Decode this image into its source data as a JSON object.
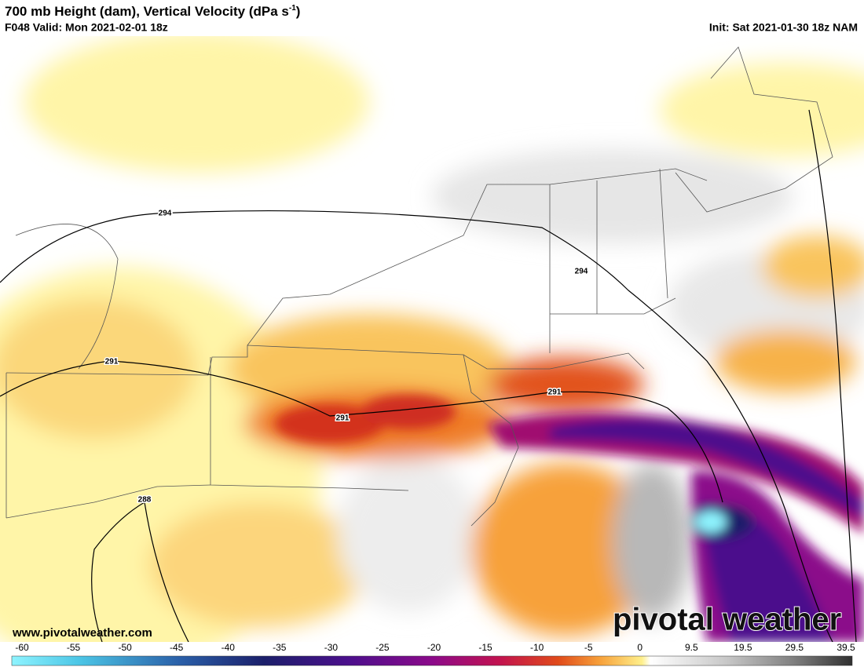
{
  "header": {
    "title": "700 mb Height (dam), Vertical Velocity (dPa s",
    "title_superscript": "-1",
    "title_end": ")",
    "valid": "F048 Valid: Mon 2021-02-01 18z",
    "init": "Init: Sat 2021-01-30 18z NAM"
  },
  "contour_labels": [
    "294",
    "294",
    "291",
    "291",
    "291",
    "288"
  ],
  "colorbar": {
    "labels": [
      "-60",
      "-55",
      "-50",
      "-45",
      "-40",
      "-35",
      "-30",
      "-25",
      "-20",
      "-15",
      "-10",
      "-5",
      "0",
      "9.5",
      "19.5",
      "29.5",
      "39.5"
    ]
  },
  "footer": {
    "website": "www.pivotalweather.com",
    "logo": "pivotal weather"
  }
}
